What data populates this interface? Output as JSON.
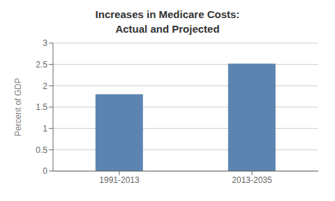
{
  "chart_data": {
    "type": "bar",
    "title": "Increases in Medicare Costs:\nActual and Projected",
    "ylabel": "Percent of GDP",
    "categories": [
      "1991-2013",
      "2013-2035"
    ],
    "values": [
      1.8,
      2.52
    ],
    "color": "#5b84b1",
    "ylim": [
      0,
      3
    ],
    "yticks": [
      0,
      0.5,
      1,
      1.5,
      2,
      2.5,
      3
    ],
    "grid": true
  }
}
